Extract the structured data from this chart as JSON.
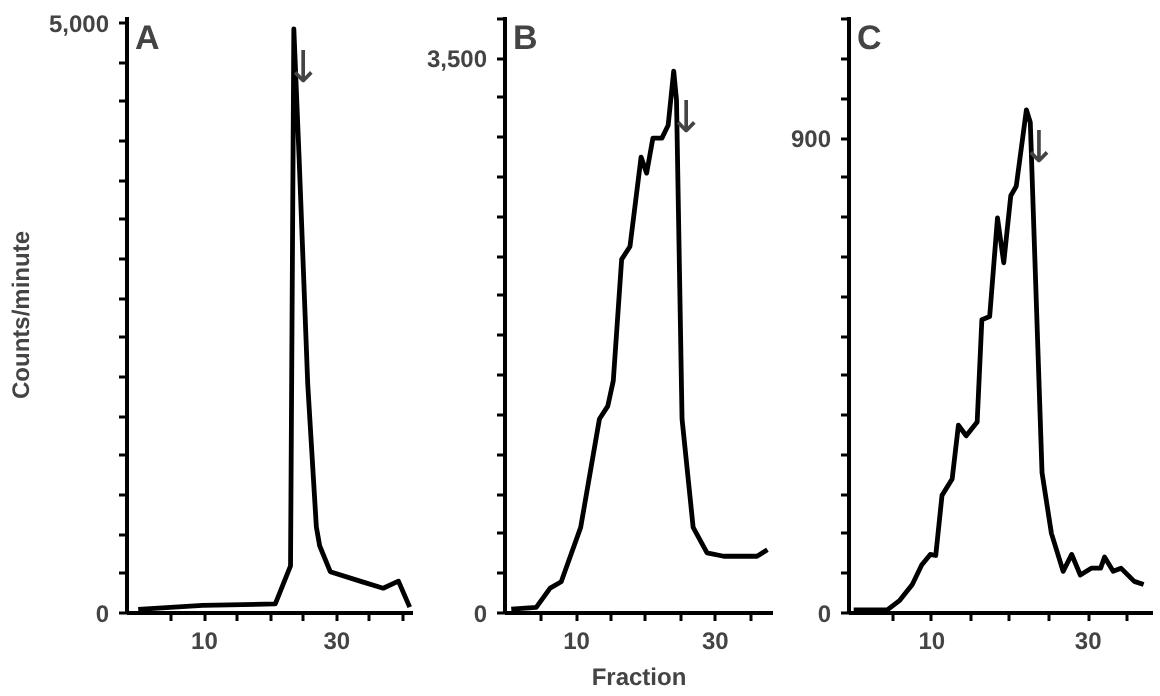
{
  "chart_data": [
    {
      "type": "line",
      "title": "A",
      "ylabel": "Counts/minute",
      "grid": false,
      "line_style": "solid",
      "marker": "none",
      "xlim": [
        -1.7,
        41.5
      ],
      "ylim": [
        0,
        5050
      ],
      "xticks": [
        {
          "value": 5,
          "label": null
        },
        10,
        {
          "value": 15,
          "label": null
        },
        {
          "value": 20,
          "label": null
        },
        {
          "value": 25,
          "label": null
        },
        30,
        {
          "value": 35,
          "label": null
        },
        {
          "value": 40,
          "label": null
        }
      ],
      "yticks": [
        0,
        {
          "value": 333,
          "label": null
        },
        {
          "value": 667,
          "label": null
        },
        {
          "value": 1000,
          "label": null
        },
        {
          "value": 1333,
          "label": null
        },
        {
          "value": 1667,
          "label": null
        },
        {
          "value": 2000,
          "label": null
        },
        {
          "value": 2333,
          "label": null
        },
        {
          "value": 2667,
          "label": null
        },
        {
          "value": 3000,
          "label": null
        },
        {
          "value": 3333,
          "label": null
        },
        {
          "value": 3667,
          "label": null
        },
        {
          "value": 4000,
          "label": null
        },
        {
          "value": 4333,
          "label": null
        },
        {
          "value": 4667,
          "label": null
        },
        {
          "value": 5000,
          "label": "5,000"
        }
      ],
      "series": [
        {
          "color": "#000000",
          "x": [
            0,
            9.7,
            20.7,
            23,
            23.5,
            24.3,
            25.6,
            26.9,
            27.4,
            29,
            33.5,
            37,
            39.3,
            41
          ],
          "values": [
            30,
            65,
            77,
            400,
            4950,
            3850,
            1940,
            730,
            570,
            350,
            270,
            210,
            270,
            50
          ]
        }
      ],
      "annotations": [
        {
          "text": "↓",
          "x": 24.9,
          "y": 4400
        }
      ]
    },
    {
      "type": "line",
      "title": "B",
      "xlabel": "Fraction",
      "grid": false,
      "line_style": "solid",
      "marker": "none",
      "xlim": [
        -0.3,
        38.3
      ],
      "ylim": [
        0,
        3760
      ],
      "xticks": [
        {
          "value": 5,
          "label": null
        },
        10,
        {
          "value": 15,
          "label": null
        },
        {
          "value": 20,
          "label": null
        },
        {
          "value": 25,
          "label": null
        },
        30,
        {
          "value": 35,
          "label": null
        }
      ],
      "yticks": [
        0,
        {
          "value": 250,
          "label": null
        },
        {
          "value": 500,
          "label": null
        },
        {
          "value": 750,
          "label": null
        },
        {
          "value": 1000,
          "label": null
        },
        {
          "value": 1250,
          "label": null
        },
        {
          "value": 1500,
          "label": null
        },
        {
          "value": 1750,
          "label": null
        },
        {
          "value": 2000,
          "label": null
        },
        {
          "value": 2250,
          "label": null
        },
        {
          "value": 2500,
          "label": null
        },
        {
          "value": 2750,
          "label": null
        },
        {
          "value": 3000,
          "label": null
        },
        {
          "value": 3250,
          "label": null
        },
        {
          "value": 3500,
          "label": "3,500"
        },
        {
          "value": 3750,
          "label": null
        }
      ],
      "series": [
        {
          "color": "#000000",
          "x": [
            0.6,
            4.2,
            6.2,
            7.8,
            10.6,
            13.3,
            14.5,
            15.3,
            16.5,
            17.7,
            19.3,
            20.1,
            21,
            22.3,
            23.2,
            24,
            24.4,
            25.2,
            26.8,
            28.8,
            31.2,
            36,
            37.5
          ],
          "values": [
            24,
            36,
            157,
            197,
            540,
            1224,
            1305,
            1466,
            2231,
            2312,
            2876,
            2775,
            2996,
            2996,
            3077,
            3419,
            3238,
            1224,
            540,
            379,
            358,
            358,
            399
          ]
        }
      ],
      "annotations": [
        {
          "text": "↓",
          "x": 25.8,
          "y": 2956
        }
      ]
    },
    {
      "type": "line",
      "title": "C",
      "grid": false,
      "line_style": "solid",
      "marker": "none",
      "xlim": [
        -0.6,
        38.3
      ],
      "ylim": [
        0,
        1130
      ],
      "xticks": [
        {
          "value": 5,
          "label": null
        },
        10,
        {
          "value": 15,
          "label": null
        },
        {
          "value": 20,
          "label": null
        },
        {
          "value": 25,
          "label": null
        },
        30,
        {
          "value": 35,
          "label": null
        }
      ],
      "yticks": [
        0,
        {
          "value": 75,
          "label": null
        },
        {
          "value": 150,
          "label": null
        },
        {
          "value": 225,
          "label": null
        },
        {
          "value": 300,
          "label": null
        },
        {
          "value": 375,
          "label": null
        },
        {
          "value": 450,
          "label": null
        },
        {
          "value": 525,
          "label": null
        },
        {
          "value": 600,
          "label": null
        },
        {
          "value": 675,
          "label": null
        },
        {
          "value": 750,
          "label": null
        },
        {
          "value": 825,
          "label": null
        },
        900,
        {
          "value": 975,
          "label": null
        },
        {
          "value": 1050,
          "label": null
        },
        {
          "value": 1125,
          "label": null
        }
      ],
      "series": [
        {
          "color": "#000000",
          "x": [
            0,
            4.3,
            5.9,
            7.5,
            8.7,
            9.8,
            10.5,
            11.3,
            12.6,
            13.4,
            14.4,
            15.8,
            16.4,
            17.4,
            18.4,
            19.2,
            20.1,
            20.8,
            22.1,
            22.6,
            24.1,
            25.3,
            26.8,
            27.9,
            29,
            30.4,
            31.6,
            32.1,
            33.2,
            34.2,
            35.9,
            37.1
          ],
          "values": [
            6,
            6,
            24,
            54,
            91,
            111,
            109,
            223,
            254,
            356,
            336,
            362,
            556,
            562,
            749,
            664,
            791,
            809,
            954,
            930,
            266,
            151,
            79,
            111,
            72,
            85,
            85,
            106,
            79,
            85,
            60,
            54
          ]
        }
      ],
      "annotations": [
        {
          "text": "↓",
          "x": 23.7,
          "y": 833
        }
      ]
    }
  ]
}
